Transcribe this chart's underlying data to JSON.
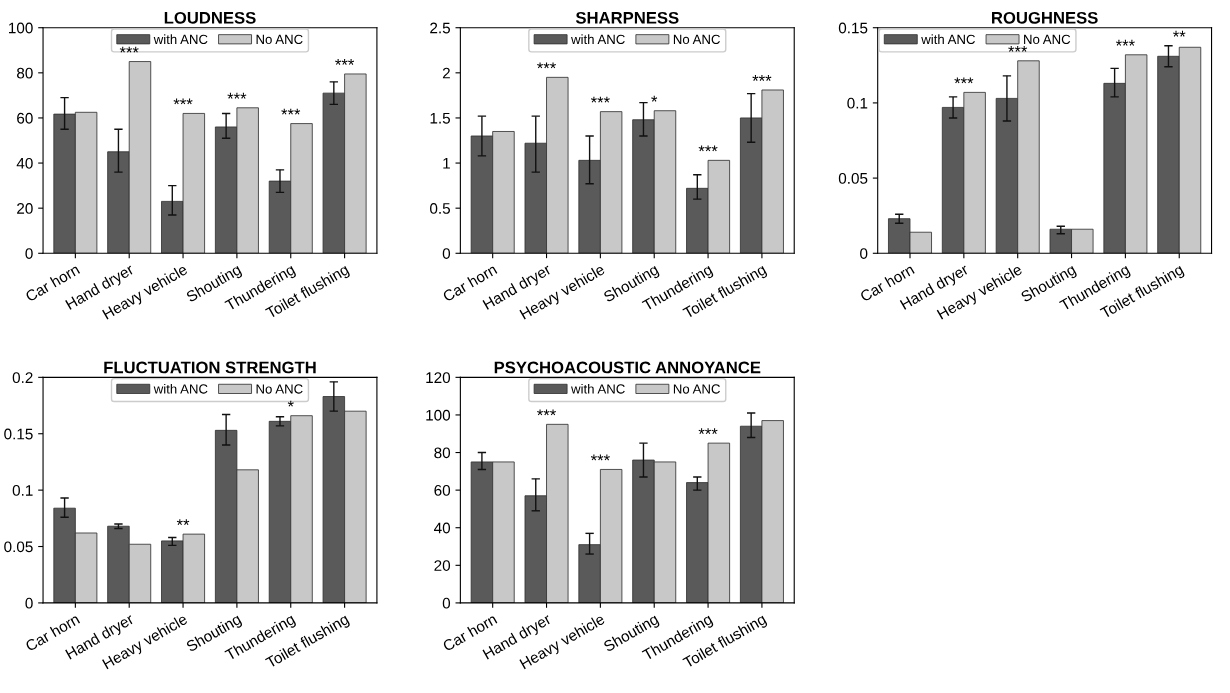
{
  "chart_data": [
    {
      "type": "bar",
      "title": "LOUDNESS",
      "categories": [
        "Car horn",
        "Hand dryer",
        "Heavy vehicle",
        "Shouting",
        "Thundering",
        "Toilet flushing"
      ],
      "ylim": [
        0,
        100
      ],
      "yticks": [
        0,
        20,
        40,
        60,
        80,
        100
      ],
      "legend": "top",
      "grid": false,
      "series": [
        {
          "name": "with ANC",
          "color": "#5a5a5a",
          "values": [
            61.7,
            45,
            23,
            56,
            32,
            71
          ],
          "errors": [
            [
              55,
              69
            ],
            [
              36,
              55
            ],
            [
              17,
              30
            ],
            [
              51,
              62
            ],
            [
              27,
              37
            ],
            [
              66,
              76
            ]
          ]
        },
        {
          "name": "No ANC",
          "color": "#c8c8c8",
          "values": [
            62.5,
            85,
            62,
            64.5,
            57.5,
            79.5
          ]
        }
      ],
      "annotations": [
        {
          "text": "***",
          "x": "Hand dryer",
          "y": 85
        },
        {
          "text": "***",
          "x": "Heavy vehicle",
          "y": 62
        },
        {
          "text": "***",
          "x": "Shouting",
          "y": 64.5
        },
        {
          "text": "***",
          "x": "Thundering",
          "y": 57.5
        },
        {
          "text": "***",
          "x": "Toilet flushing",
          "y": 79.5
        }
      ]
    },
    {
      "type": "bar",
      "title": "SHARPNESS",
      "categories": [
        "Car horn",
        "Hand dryer",
        "Heavy vehicle",
        "Shouting",
        "Thundering",
        "Toilet flushing"
      ],
      "ylim": [
        0,
        2.5
      ],
      "yticks": [
        0,
        0.5,
        1,
        1.5,
        2,
        2.5
      ],
      "legend": "top",
      "grid": false,
      "series": [
        {
          "name": "with ANC",
          "color": "#5a5a5a",
          "values": [
            1.3,
            1.22,
            1.03,
            1.48,
            0.72,
            1.5
          ],
          "errors": [
            [
              1.08,
              1.52
            ],
            [
              0.9,
              1.52
            ],
            [
              0.77,
              1.3
            ],
            [
              1.3,
              1.67
            ],
            [
              0.6,
              0.87
            ],
            [
              1.23,
              1.77
            ]
          ]
        },
        {
          "name": "No ANC",
          "color": "#c8c8c8",
          "values": [
            1.35,
            1.95,
            1.57,
            1.58,
            1.03,
            1.81
          ]
        }
      ],
      "annotations": [
        {
          "text": "***",
          "x": "Hand dryer",
          "y": 1.95
        },
        {
          "text": "***",
          "x": "Heavy vehicle",
          "y": 1.57
        },
        {
          "text": "*",
          "x": "Shouting",
          "y": 1.58
        },
        {
          "text": "***",
          "x": "Thundering",
          "y": 1.03
        },
        {
          "text": "***",
          "x": "Toilet flushing",
          "y": 1.81
        }
      ]
    },
    {
      "type": "bar",
      "title": "ROUGHNESS",
      "categories": [
        "Car horn",
        "Hand dryer",
        "Heavy vehicle",
        "Shouting",
        "Thundering",
        "Toilet flushing"
      ],
      "ylim": [
        0,
        0.15
      ],
      "yticks": [
        0,
        0.05,
        0.1,
        0.15
      ],
      "legend": "top left",
      "grid": false,
      "series": [
        {
          "name": "with ANC",
          "color": "#5a5a5a",
          "values": [
            0.023,
            0.097,
            0.103,
            0.016,
            0.113,
            0.131
          ],
          "errors": [
            [
              0.02,
              0.026
            ],
            [
              0.09,
              0.104
            ],
            [
              0.088,
              0.118
            ],
            [
              0.013,
              0.018
            ],
            [
              0.104,
              0.123
            ],
            [
              0.124,
              0.138
            ]
          ]
        },
        {
          "name": "No ANC",
          "color": "#c8c8c8",
          "values": [
            0.014,
            0.107,
            0.128,
            0.016,
            0.132,
            0.137
          ]
        }
      ],
      "annotations": [
        {
          "text": "***",
          "x": "Hand dryer",
          "y": 0.107
        },
        {
          "text": "***",
          "x": "Heavy vehicle",
          "y": 0.128
        },
        {
          "text": "***",
          "x": "Thundering",
          "y": 0.132
        },
        {
          "text": "**",
          "x": "Toilet flushing",
          "y": 0.138
        }
      ]
    },
    {
      "type": "bar",
      "title": "FLUCTUATION STRENGTH",
      "categories": [
        "Car horn",
        "Hand dryer",
        "Heavy vehicle",
        "Shouting",
        "Thundering",
        "Toilet flushing"
      ],
      "ylim": [
        0,
        0.2
      ],
      "yticks": [
        0,
        0.05,
        0.1,
        0.15,
        0.2
      ],
      "legend": "top",
      "grid": false,
      "series": [
        {
          "name": "with ANC",
          "color": "#5a5a5a",
          "values": [
            0.084,
            0.068,
            0.055,
            0.153,
            0.161,
            0.183
          ],
          "errors": [
            [
              0.076,
              0.093
            ],
            [
              0.066,
              0.07
            ],
            [
              0.051,
              0.058
            ],
            [
              0.14,
              0.167
            ],
            [
              0.157,
              0.165
            ],
            [
              0.17,
              0.196
            ]
          ]
        },
        {
          "name": "No ANC",
          "color": "#c8c8c8",
          "values": [
            0.062,
            0.052,
            0.061,
            0.118,
            0.166,
            0.17
          ]
        }
      ],
      "annotations": [
        {
          "text": "**",
          "x": "Heavy vehicle",
          "y": 0.061
        },
        {
          "text": "*",
          "x": "Thundering",
          "y": 0.166
        }
      ]
    },
    {
      "type": "bar",
      "title": "PSYCHOACOUSTIC ANNOYANCE",
      "categories": [
        "Car horn",
        "Hand dryer",
        "Heavy vehicle",
        "Shouting",
        "Thundering",
        "Toilet flushing"
      ],
      "ylim": [
        0,
        120
      ],
      "yticks": [
        0,
        20,
        40,
        60,
        80,
        100,
        120
      ],
      "legend": "top",
      "grid": false,
      "series": [
        {
          "name": "with ANC",
          "color": "#5a5a5a",
          "values": [
            75,
            57,
            31,
            76,
            64,
            94
          ],
          "errors": [
            [
              71,
              80
            ],
            [
              49,
              66
            ],
            [
              26,
              37
            ],
            [
              67,
              85
            ],
            [
              60,
              67
            ],
            [
              88,
              101
            ]
          ]
        },
        {
          "name": "No ANC",
          "color": "#c8c8c8",
          "values": [
            75,
            95,
            71,
            75,
            85,
            97
          ]
        }
      ],
      "annotations": [
        {
          "text": "***",
          "x": "Hand dryer",
          "y": 95
        },
        {
          "text": "***",
          "x": "Heavy vehicle",
          "y": 71
        },
        {
          "text": "***",
          "x": "Thundering",
          "y": 85
        }
      ]
    }
  ]
}
